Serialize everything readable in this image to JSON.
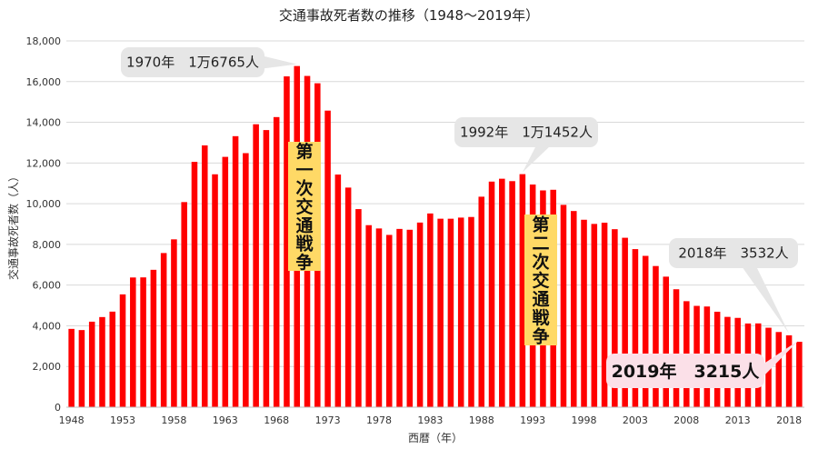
{
  "chart_data": {
    "type": "bar",
    "title": "交通事故死者数の推移（1948～2019年）",
    "xlabel": "西暦（年）",
    "ylabel": "交通事故死者数（人）",
    "ylim": [
      0,
      18000
    ],
    "yticks": [
      0,
      2000,
      4000,
      6000,
      8000,
      10000,
      12000,
      14000,
      16000,
      18000
    ],
    "ytick_labels": [
      "0",
      "2,000",
      "4,000",
      "6,000",
      "8,000",
      "10,000",
      "12,000",
      "14,000",
      "16,000",
      "18,000"
    ],
    "xtick_labels": [
      "1948",
      "1953",
      "1958",
      "1963",
      "1968",
      "1973",
      "1978",
      "1983",
      "1988",
      "1993",
      "1998",
      "2003",
      "2008",
      "2013",
      "2018"
    ],
    "xtick_years": [
      1948,
      1953,
      1958,
      1963,
      1968,
      1973,
      1978,
      1983,
      1988,
      1993,
      1998,
      2003,
      2008,
      2013,
      2018
    ],
    "grid": true,
    "bar_color": "#ff0000",
    "categories": [
      1948,
      1949,
      1950,
      1951,
      1952,
      1953,
      1954,
      1955,
      1956,
      1957,
      1958,
      1959,
      1960,
      1961,
      1962,
      1963,
      1964,
      1965,
      1966,
      1967,
      1968,
      1969,
      1970,
      1971,
      1972,
      1973,
      1974,
      1975,
      1976,
      1977,
      1978,
      1979,
      1980,
      1981,
      1982,
      1983,
      1984,
      1985,
      1986,
      1987,
      1988,
      1989,
      1990,
      1991,
      1992,
      1993,
      1994,
      1995,
      1996,
      1997,
      1998,
      1999,
      2000,
      2001,
      2002,
      2003,
      2004,
      2005,
      2006,
      2007,
      2008,
      2009,
      2010,
      2011,
      2012,
      2013,
      2014,
      2015,
      2016,
      2017,
      2018,
      2019
    ],
    "values": [
      3848,
      3790,
      4202,
      4429,
      4696,
      5544,
      6374,
      6379,
      6751,
      7575,
      8248,
      10079,
      12055,
      12865,
      11445,
      12301,
      13318,
      12484,
      13904,
      13618,
      14256,
      16257,
      16765,
      16278,
      15918,
      14574,
      11432,
      10792,
      9734,
      8945,
      8783,
      8466,
      8760,
      8719,
      9073,
      9520,
      9262,
      9261,
      9317,
      9347,
      10344,
      11086,
      11227,
      11109,
      11452,
      10942,
      10653,
      10684,
      9942,
      9640,
      9211,
      9006,
      9066,
      8747,
      8326,
      7768,
      7436,
      6937,
      6415,
      5796,
      5209,
      4979,
      4948,
      4691,
      4438,
      4388,
      4113,
      4117,
      3904,
      3694,
      3532,
      3215
    ],
    "annotations": [
      {
        "text": "1970年　1万6765人",
        "year": 1970,
        "value": 16765,
        "style": "gray"
      },
      {
        "text": "1992年　1万1452人",
        "year": 1992,
        "value": 11452,
        "style": "gray"
      },
      {
        "text": "2018年　3532人",
        "year": 2018,
        "value": 3532,
        "style": "gray"
      },
      {
        "text": "2019年　3215人",
        "year": 2019,
        "value": 3215,
        "style": "pink"
      }
    ],
    "period_labels": [
      {
        "text": "第一次交通戦争",
        "color": "#ffd966"
      },
      {
        "text": "第二次交通戦争",
        "color": "#ffd966"
      }
    ]
  }
}
